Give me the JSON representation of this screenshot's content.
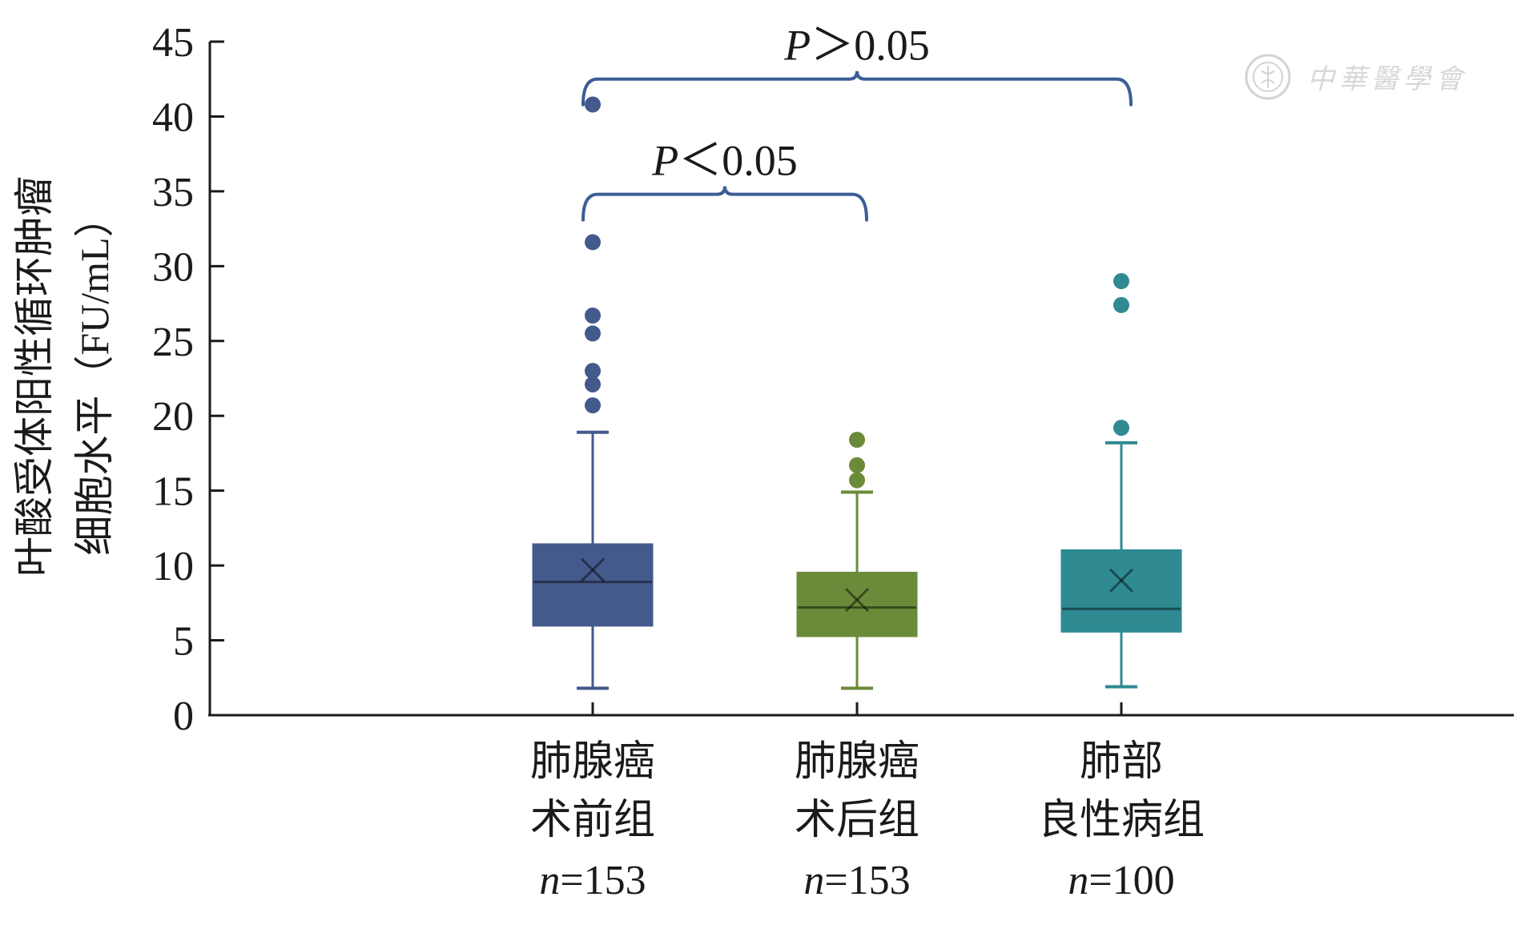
{
  "chart_data": {
    "type": "box",
    "ylabel_lines": [
      "叶酸受体阳性循环肿瘤",
      "细胞水平（FU/mL）"
    ],
    "ylim": [
      0,
      45
    ],
    "yticks": [
      0,
      5,
      10,
      15,
      20,
      25,
      30,
      35,
      40,
      45
    ],
    "groups": [
      {
        "label_lines": [
          "肺腺癌",
          "术前组"
        ],
        "n_prefix": "n",
        "n_value": "=153",
        "color": "#44598c",
        "whisker_low": 1.8,
        "q1": 6.0,
        "median": 8.9,
        "q3": 11.4,
        "whisker_high": 18.9,
        "mean": 9.7,
        "outliers": [
          20.7,
          22.1,
          23.0,
          25.5,
          26.7,
          31.6,
          40.8
        ]
      },
      {
        "label_lines": [
          "肺腺癌",
          "术后组"
        ],
        "n_prefix": "n",
        "n_value": "=153",
        "color": "#6b8b3a",
        "whisker_low": 1.8,
        "q1": 5.3,
        "median": 7.2,
        "q3": 9.5,
        "whisker_high": 14.9,
        "mean": 7.7,
        "outliers": [
          15.7,
          16.7,
          18.4
        ]
      },
      {
        "label_lines": [
          "肺部",
          "良性病组"
        ],
        "n_prefix": "n",
        "n_value": "=100",
        "color": "#2f8a92",
        "whisker_low": 1.9,
        "q1": 5.6,
        "median": 7.1,
        "q3": 11.0,
        "whisker_high": 18.2,
        "mean": 9.0,
        "outliers": [
          19.2,
          27.4,
          29.0
        ]
      }
    ],
    "brackets": [
      {
        "from": 0,
        "to": 2,
        "p_symbol": "P",
        "text": "＞0.05"
      },
      {
        "from": 0,
        "to": 1,
        "p_symbol": "P",
        "text": "＜0.05"
      }
    ],
    "bracket_color": "#3b5e96"
  },
  "watermark": {
    "text": "中華醫學會",
    "icon": "society-seal-icon"
  }
}
